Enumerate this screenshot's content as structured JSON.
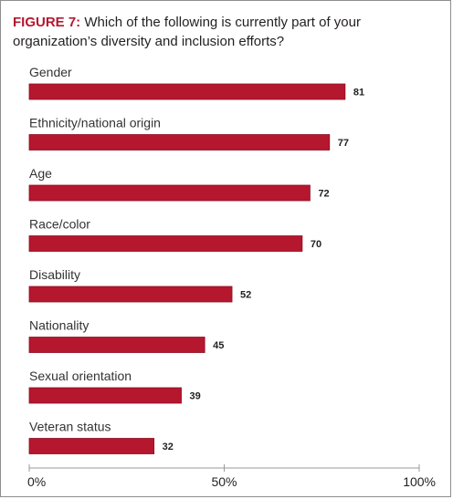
{
  "header": {
    "figure_label": "FIGURE 7:",
    "question": "Which of the following is currently part of your organization’s diversity and inclusion efforts?"
  },
  "colors": {
    "bar": "#b5172e",
    "bar_edge": "#8a1124",
    "figure_label": "#b5172e",
    "axis": "#9a9a9a"
  },
  "chart_data": {
    "type": "bar",
    "orientation": "horizontal",
    "title": "Which of the following is currently part of your organization’s diversity and inclusion efforts?",
    "categories": [
      "Gender",
      "Ethnicity/national origin",
      "Age",
      "Race/color",
      "Disability",
      "Nationality",
      "Sexual orientation",
      "Veteran status"
    ],
    "values": [
      81,
      77,
      72,
      70,
      52,
      45,
      39,
      32
    ],
    "xlim": [
      0,
      100
    ],
    "x_ticks": [
      "0%",
      "50%",
      "100%"
    ],
    "grid": false,
    "legend": "none"
  }
}
